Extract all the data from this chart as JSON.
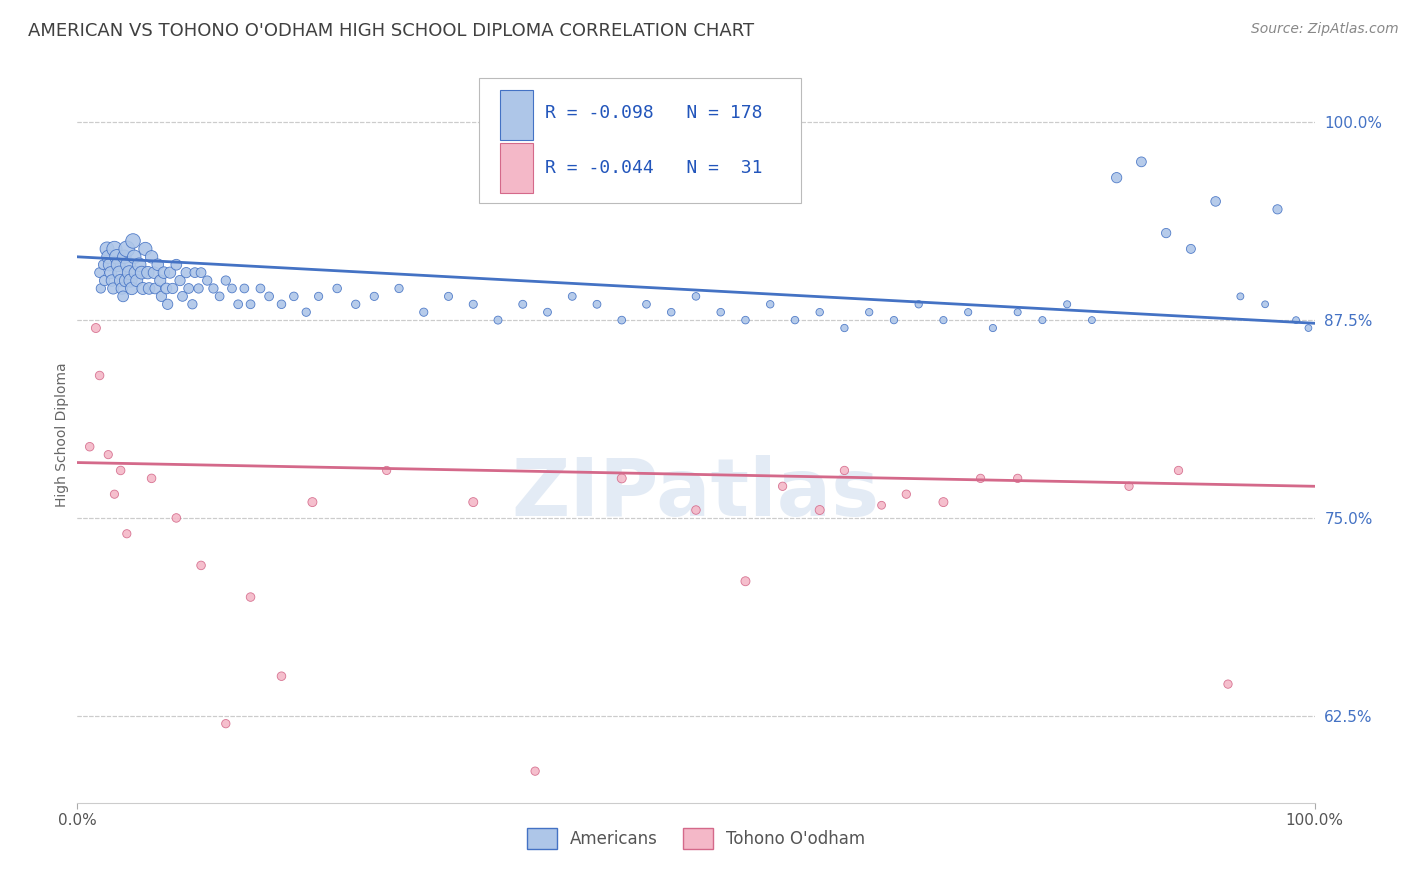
{
  "title": "AMERICAN VS TOHONO O'ODHAM HIGH SCHOOL DIPLOMA CORRELATION CHART",
  "source": "Source: ZipAtlas.com",
  "ylabel": "High School Diploma",
  "watermark": "ZIPatlas",
  "legend_am": {
    "R": -0.098,
    "N": 178,
    "fill": "#aec6e8",
    "edge": "#4472c4"
  },
  "legend_to": {
    "R": -0.044,
    "N": 31,
    "fill": "#f4b8c8",
    "edge": "#d4698a"
  },
  "xlim": [
    0.0,
    1.0
  ],
  "ylim": [
    0.57,
    1.035
  ],
  "yticks": [
    0.625,
    0.75,
    0.875,
    1.0
  ],
  "ytick_labels": [
    "62.5%",
    "75.0%",
    "87.5%",
    "100.0%"
  ],
  "xticks": [
    0.0,
    1.0
  ],
  "xtick_labels": [
    "0.0%",
    "100.0%"
  ],
  "grid_color": "#cccccc",
  "bg_color": "#ffffff",
  "title_color": "#404040",
  "tick_color": "#4472c4",
  "am_x": [
    0.018,
    0.019,
    0.021,
    0.022,
    0.024,
    0.025,
    0.026,
    0.027,
    0.028,
    0.029,
    0.03,
    0.032,
    0.033,
    0.034,
    0.035,
    0.036,
    0.037,
    0.038,
    0.039,
    0.04,
    0.041,
    0.042,
    0.043,
    0.044,
    0.045,
    0.046,
    0.047,
    0.048,
    0.05,
    0.052,
    0.053,
    0.055,
    0.057,
    0.058,
    0.06,
    0.062,
    0.063,
    0.065,
    0.067,
    0.068,
    0.07,
    0.072,
    0.073,
    0.075,
    0.077,
    0.08,
    0.083,
    0.085,
    0.088,
    0.09,
    0.093,
    0.095,
    0.098,
    0.1,
    0.105,
    0.11,
    0.115,
    0.12,
    0.125,
    0.13,
    0.135,
    0.14,
    0.148,
    0.155,
    0.165,
    0.175,
    0.185,
    0.195,
    0.21,
    0.225,
    0.24,
    0.26,
    0.28,
    0.3,
    0.32,
    0.34,
    0.36,
    0.38,
    0.4,
    0.42,
    0.44,
    0.46,
    0.48,
    0.5,
    0.52,
    0.54,
    0.56,
    0.58,
    0.6,
    0.62,
    0.64,
    0.66,
    0.68,
    0.7,
    0.72,
    0.74,
    0.76,
    0.78,
    0.8,
    0.82,
    0.84,
    0.86,
    0.88,
    0.9,
    0.92,
    0.94,
    0.96,
    0.97,
    0.985,
    0.995
  ],
  "am_y": [
    0.905,
    0.895,
    0.91,
    0.9,
    0.92,
    0.915,
    0.91,
    0.905,
    0.9,
    0.895,
    0.92,
    0.915,
    0.91,
    0.905,
    0.9,
    0.895,
    0.89,
    0.915,
    0.9,
    0.92,
    0.91,
    0.905,
    0.9,
    0.895,
    0.925,
    0.915,
    0.905,
    0.9,
    0.91,
    0.905,
    0.895,
    0.92,
    0.905,
    0.895,
    0.915,
    0.905,
    0.895,
    0.91,
    0.9,
    0.89,
    0.905,
    0.895,
    0.885,
    0.905,
    0.895,
    0.91,
    0.9,
    0.89,
    0.905,
    0.895,
    0.885,
    0.905,
    0.895,
    0.905,
    0.9,
    0.895,
    0.89,
    0.9,
    0.895,
    0.885,
    0.895,
    0.885,
    0.895,
    0.89,
    0.885,
    0.89,
    0.88,
    0.89,
    0.895,
    0.885,
    0.89,
    0.895,
    0.88,
    0.89,
    0.885,
    0.875,
    0.885,
    0.88,
    0.89,
    0.885,
    0.875,
    0.885,
    0.88,
    0.89,
    0.88,
    0.875,
    0.885,
    0.875,
    0.88,
    0.87,
    0.88,
    0.875,
    0.885,
    0.875,
    0.88,
    0.87,
    0.88,
    0.875,
    0.885,
    0.875,
    0.965,
    0.975,
    0.93,
    0.92,
    0.95,
    0.89,
    0.885,
    0.945,
    0.875,
    0.87
  ],
  "am_s": [
    50,
    45,
    50,
    55,
    100,
    90,
    80,
    75,
    70,
    65,
    120,
    110,
    100,
    90,
    80,
    70,
    60,
    95,
    80,
    130,
    115,
    100,
    90,
    80,
    110,
    95,
    85,
    75,
    95,
    85,
    75,
    90,
    80,
    70,
    80,
    70,
    60,
    70,
    65,
    55,
    70,
    60,
    55,
    65,
    55,
    60,
    55,
    50,
    55,
    50,
    45,
    50,
    45,
    50,
    45,
    45,
    40,
    45,
    40,
    40,
    40,
    40,
    40,
    40,
    38,
    38,
    36,
    35,
    38,
    36,
    35,
    36,
    35,
    34,
    34,
    33,
    33,
    32,
    32,
    32,
    31,
    31,
    30,
    30,
    30,
    30,
    29,
    29,
    29,
    28,
    28,
    28,
    28,
    27,
    27,
    27,
    26,
    26,
    26,
    25,
    55,
    50,
    45,
    42,
    48,
    25,
    24,
    44,
    24,
    24
  ],
  "to_x": [
    0.01,
    0.015,
    0.018,
    0.025,
    0.03,
    0.035,
    0.04,
    0.06,
    0.08,
    0.1,
    0.12,
    0.14,
    0.165,
    0.19,
    0.25,
    0.32,
    0.37,
    0.44,
    0.5,
    0.54,
    0.57,
    0.6,
    0.62,
    0.65,
    0.67,
    0.7,
    0.73,
    0.76,
    0.85,
    0.89,
    0.93
  ],
  "to_y": [
    0.795,
    0.87,
    0.84,
    0.79,
    0.765,
    0.78,
    0.74,
    0.775,
    0.75,
    0.72,
    0.62,
    0.7,
    0.65,
    0.76,
    0.78,
    0.76,
    0.59,
    0.775,
    0.755,
    0.71,
    0.77,
    0.755,
    0.78,
    0.758,
    0.765,
    0.76,
    0.775,
    0.775,
    0.77,
    0.78,
    0.645
  ],
  "to_s": [
    38,
    42,
    38,
    35,
    35,
    38,
    35,
    38,
    38,
    38,
    36,
    38,
    38,
    42,
    35,
    42,
    36,
    42,
    38,
    42,
    36,
    42,
    36,
    32,
    36,
    42,
    36,
    36,
    36,
    36,
    36
  ],
  "trend_am_y0": 0.915,
  "trend_am_y1": 0.873,
  "trend_to_y0": 0.785,
  "trend_to_y1": 0.77,
  "title_fs": 13,
  "source_fs": 10,
  "ylabel_fs": 10,
  "tick_fs": 11,
  "legend_fs": 13
}
